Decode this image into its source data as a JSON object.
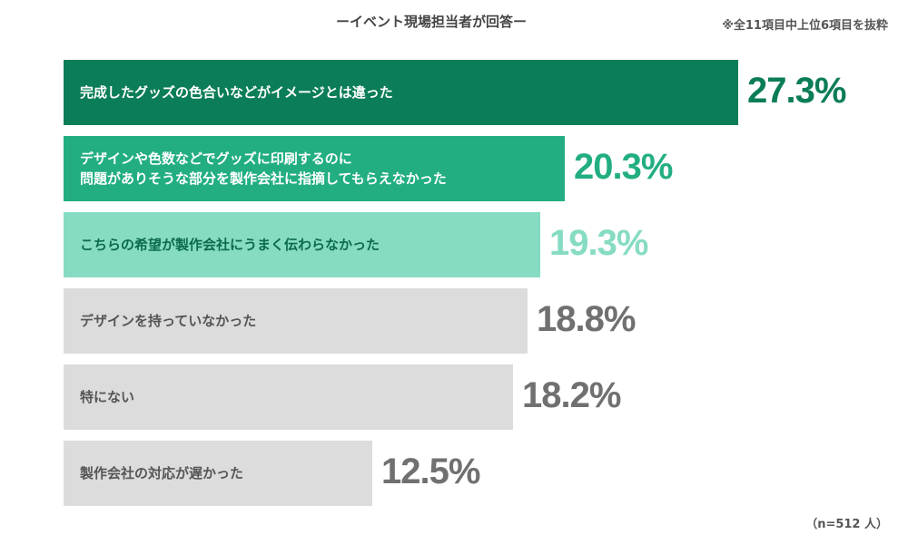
{
  "header": {
    "title": "ーイベント現場担当者が回答ー",
    "note": "※全11項目中上位6項目を抜粋"
  },
  "footer": {
    "sample": "（n=512 人）"
  },
  "chart_data": {
    "type": "bar",
    "orientation": "horizontal",
    "categories": [
      "完成したグッズの色合いなどがイメージとは違った",
      "デザインや色数などでグッズに印刷するのに\n問題がありそうな部分を製作会社に指摘してもらえなかった",
      "こちらの希望が製作会社にうまく伝わらなかった",
      "デザインを持っていなかった",
      "特にない",
      "製作会社の対応が遅かった"
    ],
    "values": [
      27.3,
      20.3,
      19.3,
      18.8,
      18.2,
      12.5
    ],
    "value_labels": [
      "27.3%",
      "20.3%",
      "19.3%",
      "18.8%",
      "18.2%",
      "12.5%"
    ],
    "unit": "%",
    "colors": {
      "bars": [
        "#0b7d58",
        "#22ae82",
        "#86dcc3",
        "#dcdcdc",
        "#dcdcdc",
        "#dcdcdc"
      ],
      "labels": [
        "#ffffff",
        "#ffffff",
        "#0b6b4c",
        "#555555",
        "#555555",
        "#555555"
      ],
      "values": [
        "#0b7d58",
        "#22ae82",
        "#86dcc3",
        "#707070",
        "#707070",
        "#707070"
      ]
    },
    "grid": false,
    "legend": "none"
  }
}
